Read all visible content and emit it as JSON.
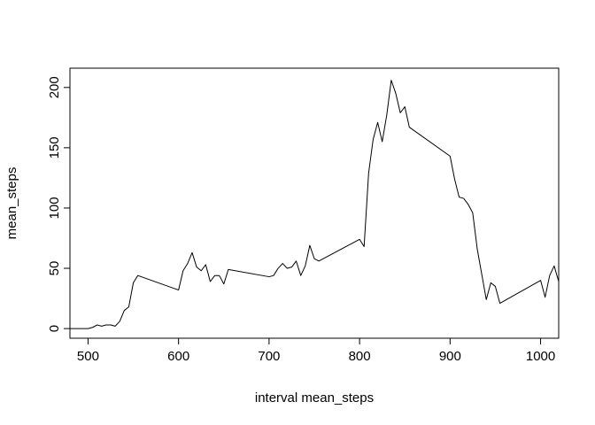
{
  "chart_data": {
    "type": "line",
    "title": "",
    "xlabel": "interval mean_steps",
    "ylabel": "mean_steps",
    "xlim": [
      480,
      1020
    ],
    "ylim": [
      -8,
      216
    ],
    "xticks": [
      500,
      600,
      700,
      800,
      900,
      1000
    ],
    "yticks": [
      0,
      50,
      100,
      150,
      200
    ],
    "grid": false,
    "line_color": "#000000",
    "series": [
      {
        "x": [
          440,
          450,
          455,
          500,
          505,
          510,
          515,
          520,
          525,
          530,
          535,
          540,
          545,
          550,
          555,
          600,
          605,
          610,
          615,
          620,
          625,
          630,
          635,
          640,
          645,
          650,
          655,
          700,
          705,
          710,
          715,
          720,
          725,
          730,
          735,
          740,
          745,
          750,
          755,
          800,
          805,
          810,
          815,
          820,
          825,
          830,
          835,
          840,
          845,
          850,
          855,
          900,
          905,
          910,
          915,
          920,
          925,
          930,
          935,
          940,
          945,
          950,
          955,
          1000,
          1005,
          1010,
          1015,
          1020
        ],
        "y": [
          0,
          0,
          0,
          0,
          1,
          3,
          2,
          3,
          3,
          2,
          6,
          15,
          18,
          38,
          44,
          32,
          48,
          54,
          63,
          51,
          48,
          53,
          39,
          44,
          44,
          37,
          49,
          43,
          44,
          50,
          54,
          50,
          51,
          56,
          44,
          52,
          69,
          58,
          56,
          74,
          68,
          129,
          157,
          171,
          155,
          177,
          206,
          195,
          179,
          184,
          167,
          143,
          124,
          109,
          108,
          103,
          96,
          66,
          45,
          24,
          38,
          35,
          21,
          40,
          26,
          44,
          52,
          39
        ]
      }
    ]
  }
}
